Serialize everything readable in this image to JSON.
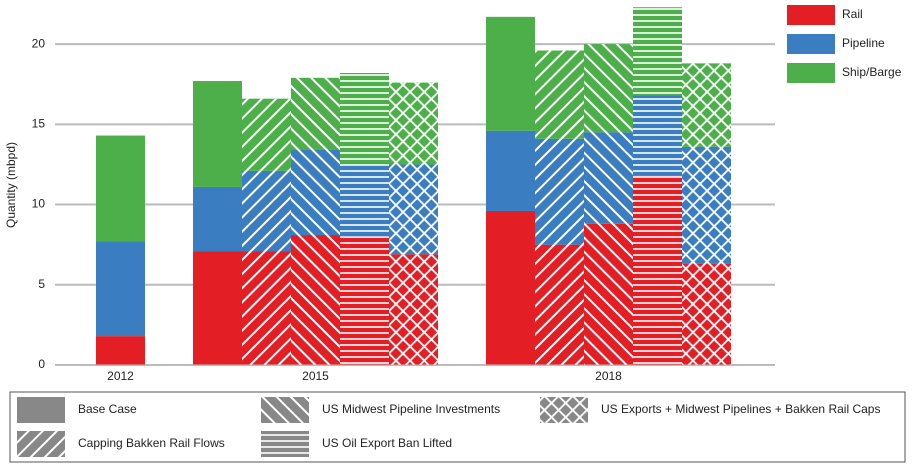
{
  "chart_data": {
    "type": "grouped-stacked-bar",
    "y_label": "Quantity (mbpd)",
    "categories": [
      "2012",
      "2015",
      "2018"
    ],
    "scenarios": [
      "Base Case",
      "Capping Bakken Rail Flows",
      "US Midwest Pipeline Investments",
      "US Oil Export Ban Lifted",
      "US Exports + Midwest Pipelines + Bakken Rail Caps"
    ],
    "series": [
      {
        "name": "Rail",
        "color": "#e31e24",
        "values": [
          [
            1.8
          ],
          [
            7.1,
            7.1,
            8.1,
            8.0,
            6.9
          ],
          [
            9.6,
            7.5,
            8.8,
            11.8,
            6.3
          ]
        ]
      },
      {
        "name": "Pipeline",
        "color": "#3a7dc0",
        "values": [
          [
            5.9
          ],
          [
            4.0,
            5.0,
            5.3,
            4.5,
            5.6
          ],
          [
            5.0,
            6.6,
            5.7,
            5.0,
            7.3
          ]
        ]
      },
      {
        "name": "Ship/Barge",
        "color": "#4daf4a",
        "values": [
          [
            6.6
          ],
          [
            6.6,
            4.5,
            4.5,
            5.7,
            5.1
          ],
          [
            7.1,
            5.5,
            5.5,
            5.5,
            5.2
          ]
        ]
      }
    ],
    "ylim": [
      0,
      22.5
    ],
    "yticks": [
      0,
      5,
      10,
      15,
      20
    ],
    "grid": true
  }
}
